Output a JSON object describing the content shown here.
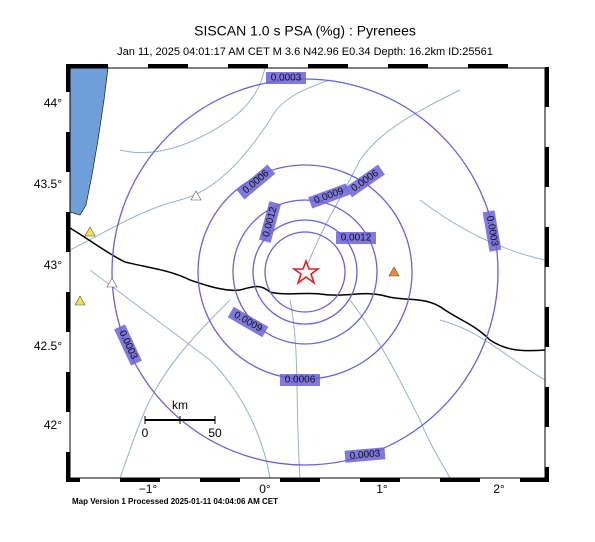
{
  "header": {
    "title": "SISCAN 1.0 s PSA (%g) : Pyrenees",
    "subtitle": "Jan 11, 2025 04:01:17 AM CET   M 3.6   N42.96 E0.34   Depth: 16.2km   ID:25561"
  },
  "map": {
    "lat_labels": [
      "44°",
      "43.5°",
      "43°",
      "42.5°",
      "42°"
    ],
    "lon_labels": [
      "−1°",
      "0°",
      "1°",
      "2°"
    ],
    "contour_labels": [
      "0.0003",
      "0.0006",
      "0.0006",
      "0.0009",
      "0.0012",
      "0.0012",
      "0.0003",
      "0.0009",
      "0.0003",
      "0.0006",
      "0.0003"
    ],
    "scale": {
      "unit": "km",
      "start": "0",
      "end": "50"
    }
  },
  "footer": "Map Version 1 Processed 2025-01-11 04:04:06 AM CET"
}
